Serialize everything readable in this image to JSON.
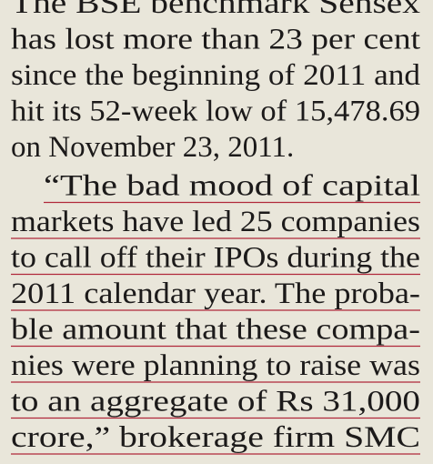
{
  "paragraphs": [
    {
      "lines": [
        "The BSE benchmark Sensex",
        "has lost more than 23 per cent",
        "since the beginning of 2011 and",
        "hit its 52-week low of 15,478.69",
        "on November 23, 2011."
      ],
      "underlined": false
    },
    {
      "lines": [
        "“The bad mood of capital",
        "markets have led 25 companies",
        "to call off their IPOs during the",
        "2011 calendar year. The proba-",
        "ble amount that these compa-",
        "nies were planning to raise was",
        "to an aggregate of Rs 31,000",
        "crore,” brokerage firm SMC"
      ],
      "underlined": true
    }
  ]
}
